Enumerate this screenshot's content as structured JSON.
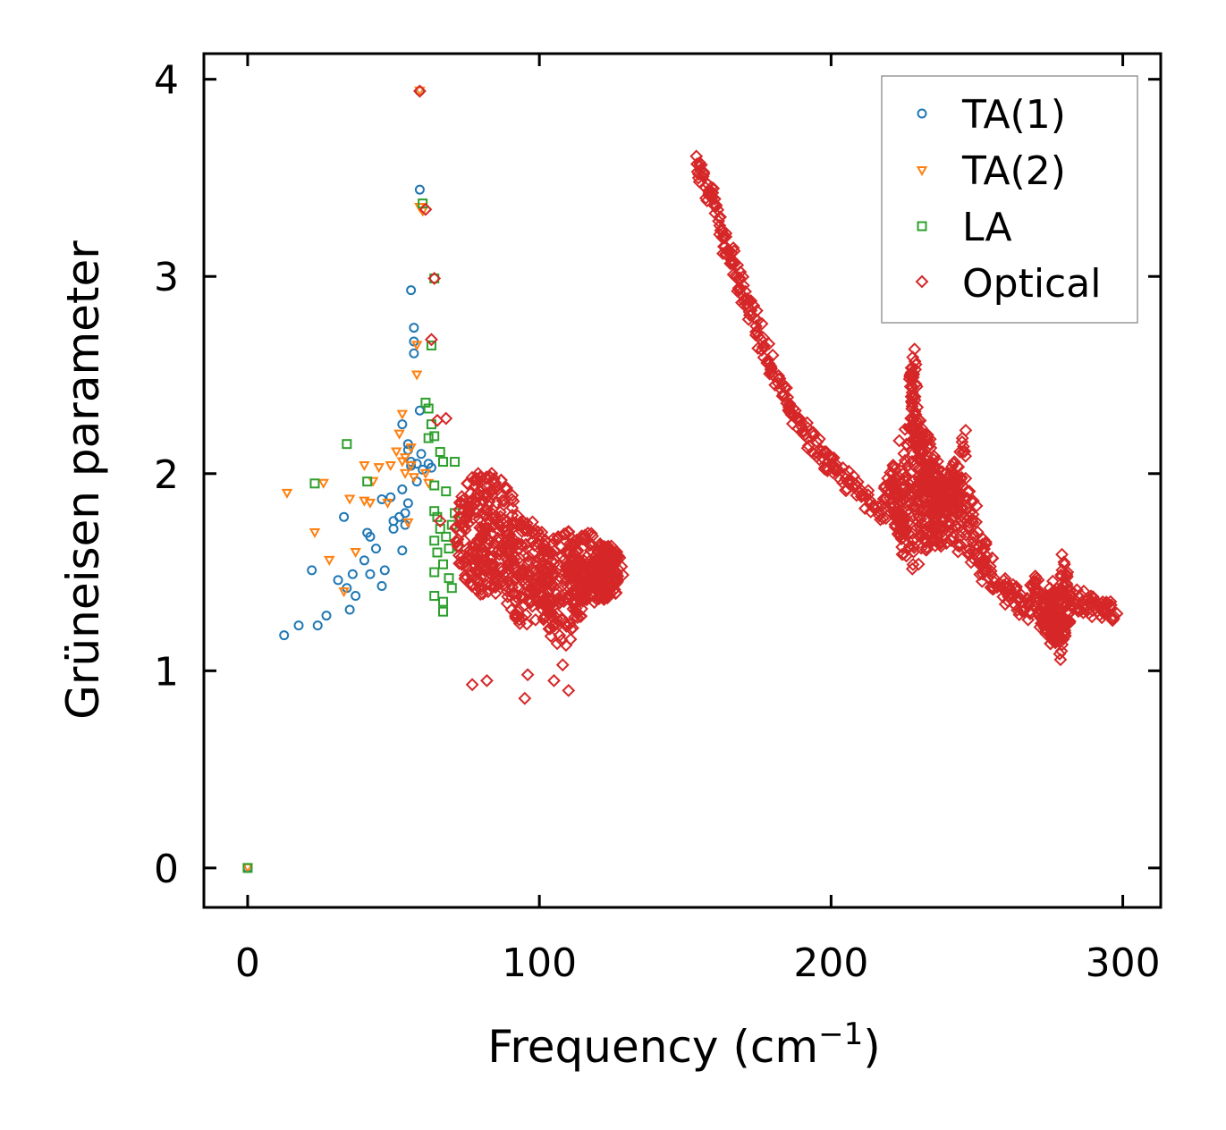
{
  "chart_data": {
    "type": "scatter",
    "title": "",
    "xlabel": "Frequency (cm",
    "xlabel_sup": "−1",
    "xlabel_end": ")",
    "ylabel": "Grüneisen parameter",
    "xlim": [
      -15,
      313
    ],
    "ylim": [
      -0.2,
      4.13
    ],
    "xticks": [
      {
        "value": 0,
        "label": "0"
      },
      {
        "value": 100,
        "label": "100"
      },
      {
        "value": 200,
        "label": "200"
      },
      {
        "value": 300,
        "label": "300"
      }
    ],
    "yticks": [
      {
        "value": 0,
        "label": "0"
      },
      {
        "value": 1,
        "label": "1"
      },
      {
        "value": 2,
        "label": "2"
      },
      {
        "value": 3,
        "label": "3"
      },
      {
        "value": 4,
        "label": "4"
      }
    ],
    "legend_position": "top-right",
    "series": [
      {
        "name": "TA(1)",
        "marker": "circle",
        "color": "#1f77b4",
        "points": [
          [
            0,
            0
          ],
          [
            12.5,
            1.18
          ],
          [
            17.5,
            1.23
          ],
          [
            24,
            1.23
          ],
          [
            27,
            1.28
          ],
          [
            22,
            1.51
          ],
          [
            31,
            1.46
          ],
          [
            33,
            1.78
          ],
          [
            34,
            1.42
          ],
          [
            35,
            1.31
          ],
          [
            36,
            1.49
          ],
          [
            37,
            1.38
          ],
          [
            40,
            1.56
          ],
          [
            41,
            1.7
          ],
          [
            42,
            1.68
          ],
          [
            42,
            1.49
          ],
          [
            44,
            1.62
          ],
          [
            46,
            1.87
          ],
          [
            46,
            1.43
          ],
          [
            47,
            1.51
          ],
          [
            49,
            1.88
          ],
          [
            50,
            1.76
          ],
          [
            50,
            1.72
          ],
          [
            52,
            1.78
          ],
          [
            53,
            1.61
          ],
          [
            53,
            1.92
          ],
          [
            53,
            2.25
          ],
          [
            54,
            1.8
          ],
          [
            54,
            1.74
          ],
          [
            55,
            2.15
          ],
          [
            55,
            2.12
          ],
          [
            55,
            1.85
          ],
          [
            56,
            2.06
          ],
          [
            56,
            2.04
          ],
          [
            56,
            2.93
          ],
          [
            57,
            2.61
          ],
          [
            57,
            2.67
          ],
          [
            57,
            2.74
          ],
          [
            58,
            2.05
          ],
          [
            58,
            1.96
          ],
          [
            59,
            2.32
          ],
          [
            59,
            3.44
          ],
          [
            59,
            3.94
          ],
          [
            59.5,
            2.1
          ],
          [
            60,
            2.02
          ],
          [
            62,
            2.05
          ],
          [
            63,
            2.03
          ]
        ]
      },
      {
        "name": "TA(2)",
        "marker": "triangle",
        "color": "#ff7f0e",
        "points": [
          [
            0,
            0
          ],
          [
            13.5,
            1.9
          ],
          [
            23,
            1.7
          ],
          [
            26,
            1.95
          ],
          [
            28,
            1.56
          ],
          [
            33,
            1.4
          ],
          [
            35,
            1.87
          ],
          [
            37,
            1.6
          ],
          [
            40,
            2.04
          ],
          [
            40,
            1.86
          ],
          [
            42,
            1.85
          ],
          [
            43,
            1.96
          ],
          [
            45,
            2.03
          ],
          [
            48,
            1.85
          ],
          [
            49,
            2.04
          ],
          [
            51,
            2.11
          ],
          [
            52,
            2.2
          ],
          [
            53,
            2.3
          ],
          [
            53,
            2.06
          ],
          [
            54,
            2.0
          ],
          [
            54,
            2.08
          ],
          [
            55,
            1.75
          ],
          [
            56,
            2.04
          ],
          [
            56,
            2.13
          ],
          [
            57,
            1.98
          ],
          [
            58,
            2.5
          ],
          [
            58,
            2.65
          ],
          [
            59,
            3.35
          ],
          [
            59,
            3.94
          ],
          [
            60,
            3.33
          ],
          [
            61,
            2.0
          ],
          [
            62,
            1.95
          ]
        ]
      },
      {
        "name": "LA",
        "marker": "square",
        "color": "#2ca02c",
        "points": [
          [
            0,
            0
          ],
          [
            23,
            1.95
          ],
          [
            34,
            2.15
          ],
          [
            41,
            1.96
          ],
          [
            60,
            3.37
          ],
          [
            61,
            2.36
          ],
          [
            62,
            2.33
          ],
          [
            62,
            2.18
          ],
          [
            63,
            2.65
          ],
          [
            63,
            2.25
          ],
          [
            64,
            2.19
          ],
          [
            64,
            2.99
          ],
          [
            64,
            1.94
          ],
          [
            64,
            1.81
          ],
          [
            64,
            1.66
          ],
          [
            64,
            1.5
          ],
          [
            64,
            1.38
          ],
          [
            65,
            1.78
          ],
          [
            65,
            1.6
          ],
          [
            66,
            2.11
          ],
          [
            66,
            1.72
          ],
          [
            67,
            1.3
          ],
          [
            67,
            1.35
          ],
          [
            67,
            1.54
          ],
          [
            67,
            2.06
          ],
          [
            68,
            1.68
          ],
          [
            68,
            1.91
          ],
          [
            69,
            1.47
          ],
          [
            69,
            1.62
          ],
          [
            70,
            1.42
          ],
          [
            70,
            1.74
          ],
          [
            71,
            2.06
          ],
          [
            71,
            1.8
          ],
          [
            72,
            1.63
          ],
          [
            73,
            1.78
          ]
        ]
      },
      {
        "name": "Optical",
        "marker": "diamond",
        "color": "#d62728",
        "points": [
          [
            59,
            3.94
          ],
          [
            61,
            3.34
          ],
          [
            64,
            2.99
          ],
          [
            63,
            2.68
          ],
          [
            65,
            2.27
          ],
          [
            68,
            2.28
          ],
          [
            66,
            1.76
          ],
          [
            77,
            0.93
          ],
          [
            82,
            0.95
          ],
          [
            95,
            0.86
          ],
          [
            96,
            0.98
          ],
          [
            110,
            0.9
          ],
          [
            105,
            0.95
          ],
          [
            108,
            1.03
          ],
          [
            154,
            3.57
          ],
          [
            157,
            3.45
          ],
          [
            160,
            3.36
          ],
          [
            163,
            3.2
          ],
          [
            166,
            3.08
          ],
          [
            169,
            2.94
          ],
          [
            172,
            2.82
          ],
          [
            176,
            2.68
          ],
          [
            180,
            2.5
          ],
          [
            184,
            2.4
          ],
          [
            188,
            2.28
          ],
          [
            192,
            2.18
          ],
          [
            197,
            2.08
          ],
          [
            201,
            2.02
          ],
          [
            206,
            1.95
          ],
          [
            212,
            1.88
          ],
          [
            218,
            1.82
          ],
          [
            222,
            1.79
          ],
          [
            225,
            1.76
          ],
          [
            228,
            2.59
          ],
          [
            228,
            2.44
          ],
          [
            229,
            2.3
          ],
          [
            230,
            2.18
          ],
          [
            231,
            2.06
          ],
          [
            233,
            1.96
          ],
          [
            236,
            1.84
          ],
          [
            240,
            1.74
          ],
          [
            244,
            1.63
          ],
          [
            248,
            1.55
          ],
          [
            252,
            1.49
          ],
          [
            256,
            1.45
          ],
          [
            260,
            1.4
          ],
          [
            264,
            1.36
          ],
          [
            268,
            1.3
          ],
          [
            272,
            1.24
          ],
          [
            276,
            1.17
          ],
          [
            279,
            1.1
          ],
          [
            280,
            1.54
          ],
          [
            282,
            1.36
          ],
          [
            286,
            1.35
          ],
          [
            290,
            1.33
          ],
          [
            294,
            1.31
          ],
          [
            298,
            1.29
          ],
          [
            238,
            1.94
          ],
          [
            242,
            2.05
          ],
          [
            245,
            2.18
          ],
          [
            248,
            1.86
          ],
          [
            252,
            1.62
          ],
          [
            221,
            2.0
          ],
          [
            224,
            1.72
          ],
          [
            270,
            1.48
          ],
          [
            275,
            1.42
          ]
        ],
        "regions": [
          {
            "cx": 82,
            "cy": 1.7,
            "rx": 11,
            "ry": 0.32,
            "n": 260
          },
          {
            "cx": 96,
            "cy": 1.5,
            "rx": 9,
            "ry": 0.28,
            "n": 160
          },
          {
            "cx": 108,
            "cy": 1.42,
            "rx": 8,
            "ry": 0.3,
            "n": 150
          },
          {
            "cx": 118,
            "cy": 1.52,
            "rx": 10,
            "ry": 0.18,
            "n": 170
          },
          {
            "cx": 124,
            "cy": 1.5,
            "rx": 5,
            "ry": 0.12,
            "n": 70
          },
          {
            "cx": 229,
            "cy": 1.9,
            "rx": 8,
            "ry": 0.4,
            "n": 160
          },
          {
            "cx": 237,
            "cy": 1.85,
            "rx": 9,
            "ry": 0.22,
            "n": 130
          },
          {
            "cx": 277,
            "cy": 1.28,
            "rx": 5,
            "ry": 0.14,
            "n": 100
          }
        ]
      }
    ]
  }
}
